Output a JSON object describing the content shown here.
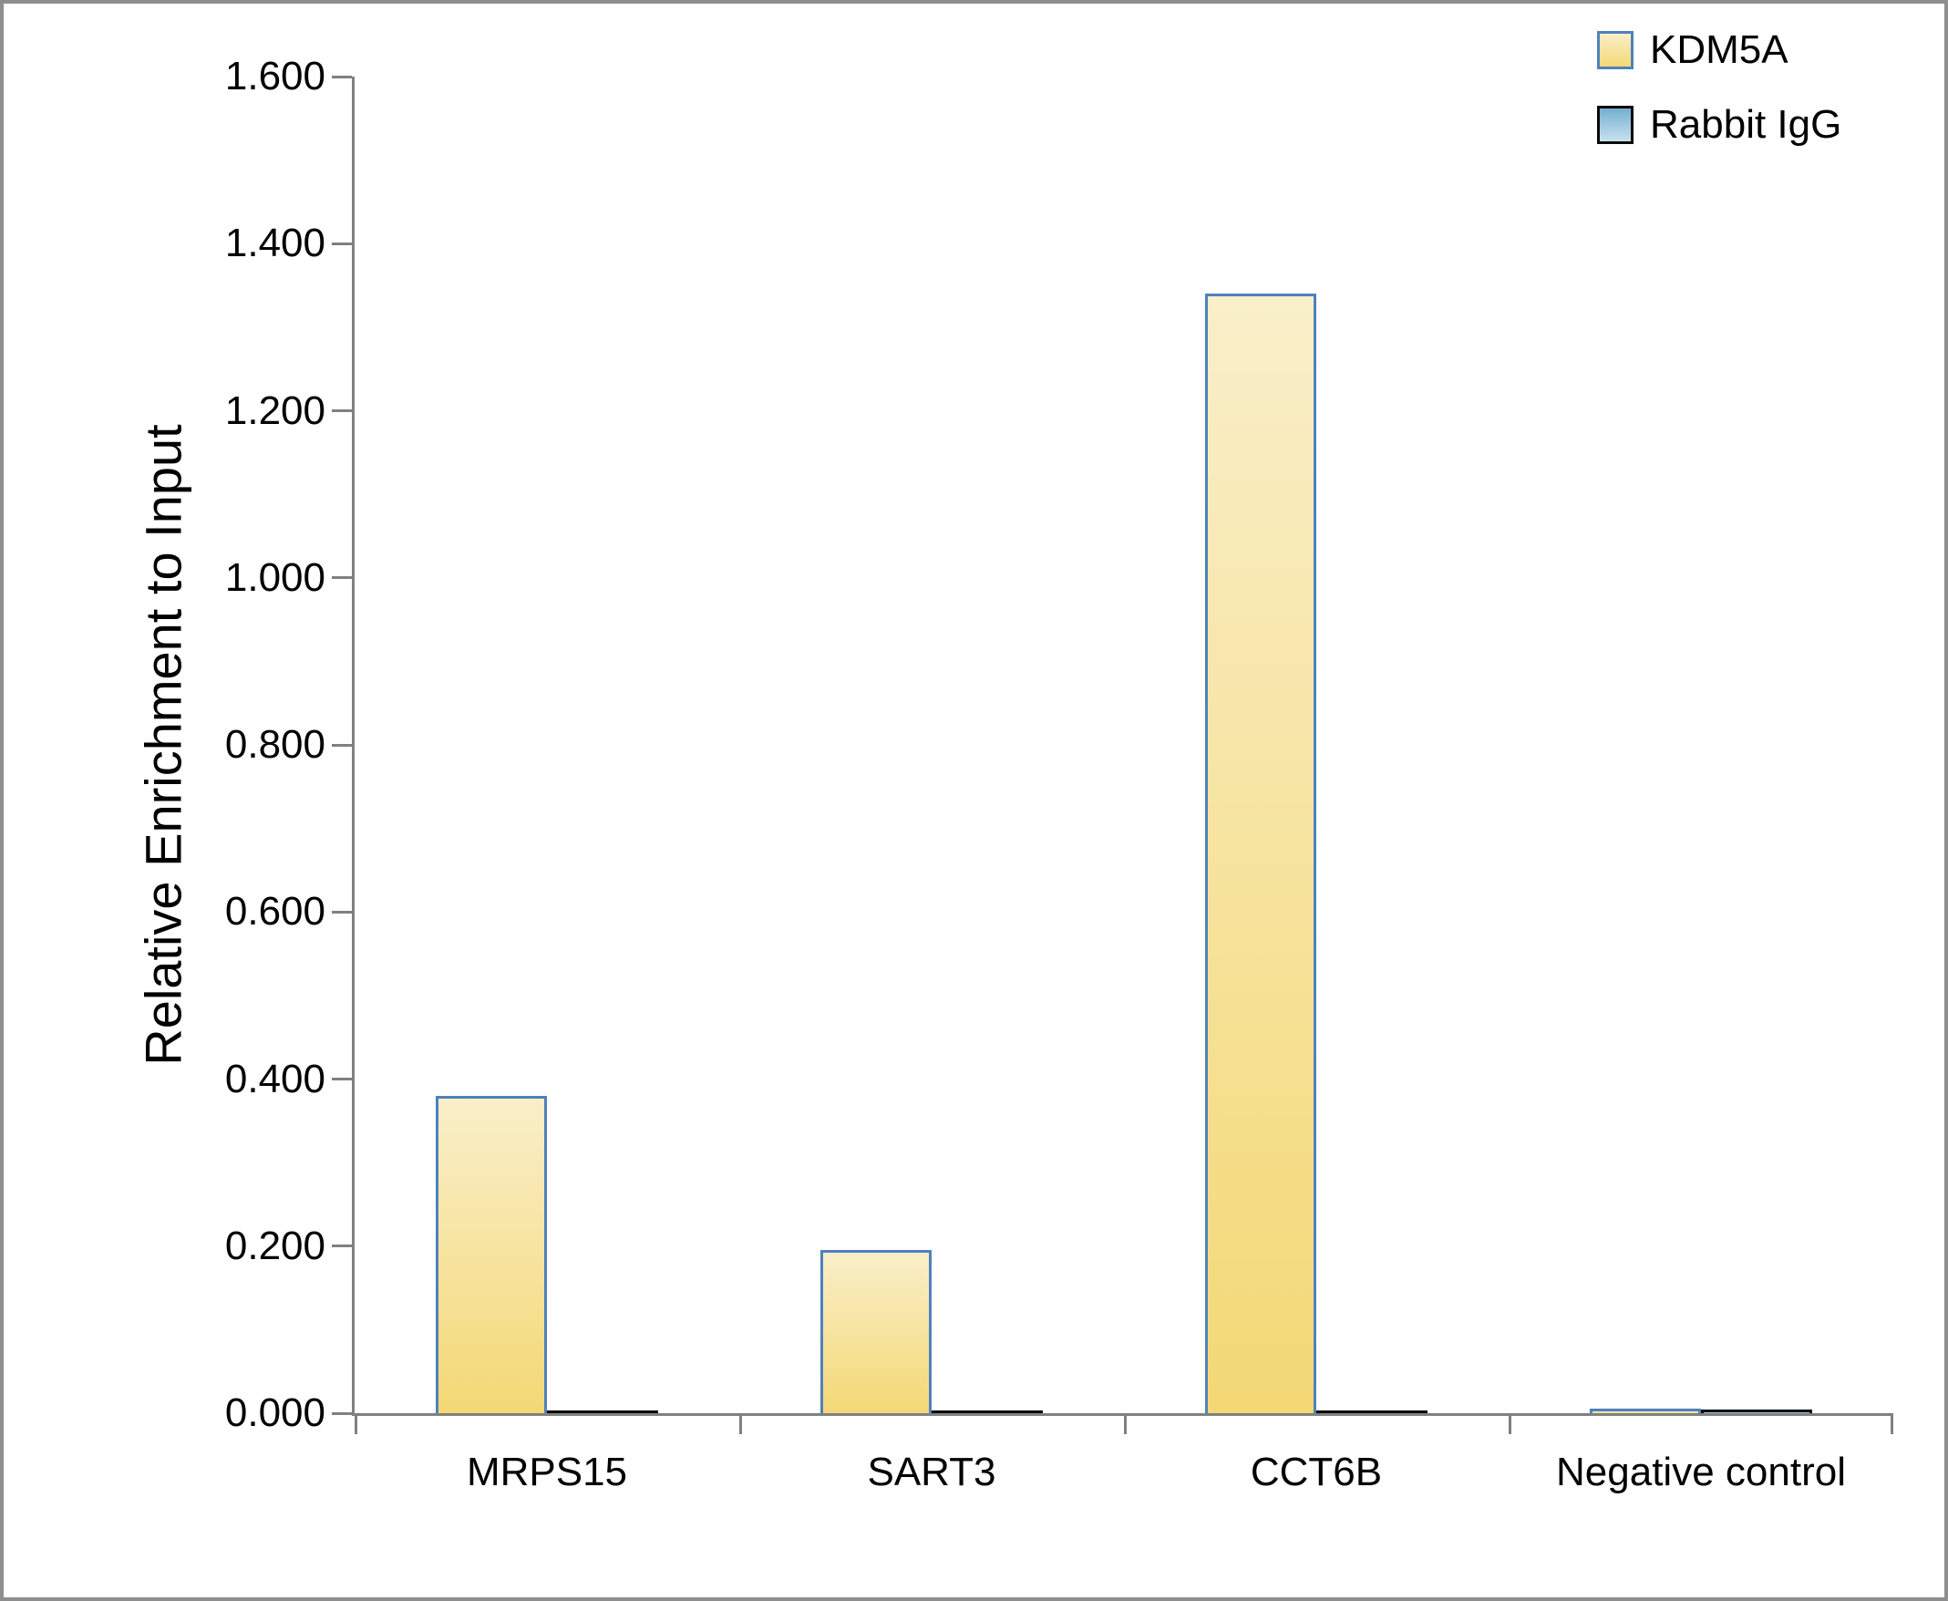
{
  "chart_data": {
    "type": "bar",
    "title": "",
    "ylabel": "Relative Enrichment to Input",
    "xlabel": "",
    "categories": [
      "MRPS15",
      "SART3",
      "CCT6B",
      "Negative control"
    ],
    "series": [
      {
        "name": "KDM5A",
        "values": [
          0.38,
          0.195,
          1.34,
          0.005
        ],
        "fill_top": "#F9EFC9",
        "fill_bottom": "#F4D875",
        "border_color": "#4F81BD"
      },
      {
        "name": "Rabbit IgG",
        "values": [
          0.003,
          0.003,
          0.003,
          0.004
        ],
        "fill_top": "#74AECF",
        "fill_bottom": "#C8E2EF",
        "border_color": "#0a0a0a"
      }
    ],
    "ylim": [
      0,
      1.6
    ],
    "ytick_labels": [
      "0.000",
      "0.200",
      "0.400",
      "0.600",
      "0.800",
      "1.000",
      "1.200",
      "1.400",
      "1.600"
    ],
    "grid": false,
    "legend_position": "top-right",
    "axis_color": "#808080",
    "text_color": "#000000"
  }
}
